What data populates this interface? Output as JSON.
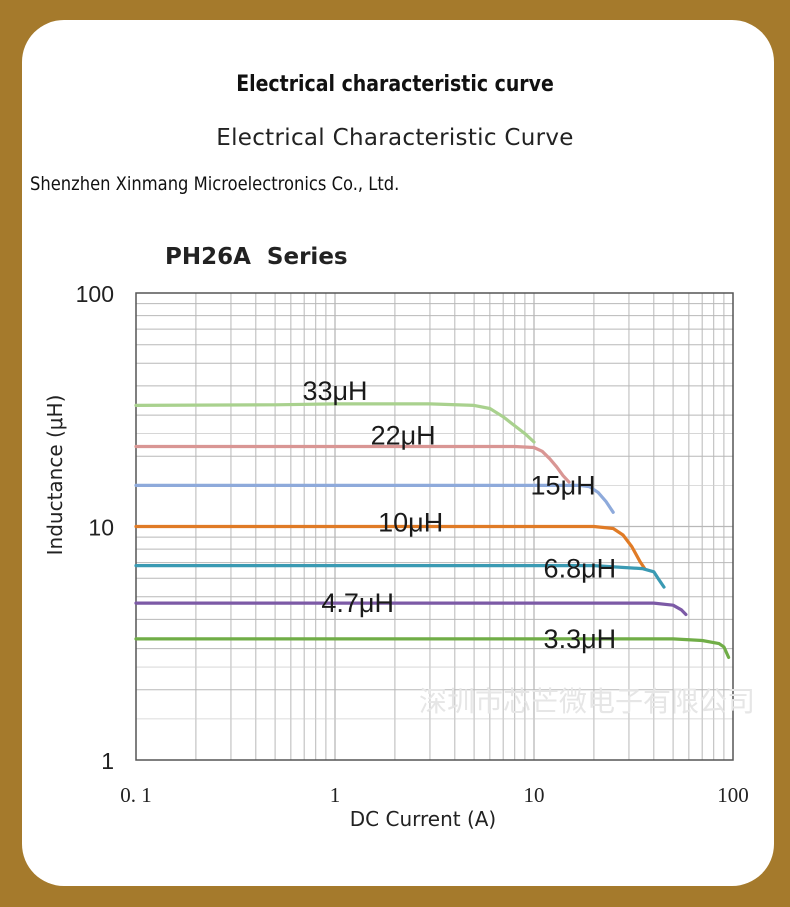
{
  "page": {
    "title_cn": "Electrical characteristic curve",
    "title_en": "Electrical Characteristic Curve",
    "company": "Shenzhen Xinmang Microelectronics Co., Ltd.",
    "watermark": "深圳市芯芒微电子有限公司"
  },
  "colors": {
    "background": "#a57a2c",
    "card": "#ffffff",
    "grid": "#b8b8b8",
    "axis": "#555555"
  },
  "chart_data": {
    "type": "line",
    "title": "PH26A  Series",
    "xlabel": "DC Current (A)",
    "ylabel": "Inductance (μH)",
    "xscale": "log",
    "yscale": "log",
    "xlim": [
      0.1,
      100
    ],
    "ylim": [
      1,
      100
    ],
    "xticks": [
      0.1,
      1,
      10,
      100
    ],
    "xtick_labels": [
      "0. 1",
      "1",
      "10",
      "100"
    ],
    "yticks": [
      1,
      10,
      100
    ],
    "ytick_labels": [
      "1",
      "10",
      "100"
    ],
    "grid": true,
    "series": [
      {
        "name": "33μH",
        "color": "#a9d18e",
        "label_at": [
          1.0,
          38
        ],
        "points": [
          [
            0.1,
            33
          ],
          [
            0.5,
            33.2
          ],
          [
            1,
            33.5
          ],
          [
            3,
            33.5
          ],
          [
            5,
            33
          ],
          [
            6,
            32
          ],
          [
            7,
            29.5
          ],
          [
            8,
            27
          ],
          [
            9,
            25
          ],
          [
            10,
            23
          ]
        ]
      },
      {
        "name": "22μH",
        "color": "#d99694",
        "label_at": [
          2.2,
          24.5
        ],
        "points": [
          [
            0.1,
            22
          ],
          [
            1,
            22
          ],
          [
            5,
            22
          ],
          [
            8,
            22
          ],
          [
            10,
            21.8
          ],
          [
            11,
            21
          ],
          [
            12,
            19.5
          ],
          [
            13,
            18
          ],
          [
            14,
            16.5
          ],
          [
            15,
            15.5
          ]
        ]
      },
      {
        "name": "15μH",
        "color": "#8eaadb",
        "label_at": [
          14,
          15
        ],
        "points": [
          [
            0.1,
            15
          ],
          [
            1,
            15
          ],
          [
            10,
            15
          ],
          [
            17,
            15
          ],
          [
            19,
            14.8
          ],
          [
            21,
            14
          ],
          [
            23,
            12.8
          ],
          [
            25,
            11.5
          ]
        ]
      },
      {
        "name": "10μH",
        "color": "#e07b26",
        "label_at": [
          2.4,
          10.4
        ],
        "points": [
          [
            0.1,
            10
          ],
          [
            1,
            10
          ],
          [
            10,
            10
          ],
          [
            20,
            10
          ],
          [
            25,
            9.8
          ],
          [
            28,
            9.2
          ],
          [
            31,
            8.2
          ],
          [
            34,
            7.1
          ],
          [
            36,
            6.6
          ]
        ]
      },
      {
        "name": "6.8μH",
        "color": "#3a9ab3",
        "label_at": [
          17,
          6.6
        ],
        "points": [
          [
            0.1,
            6.8
          ],
          [
            1,
            6.8
          ],
          [
            10,
            6.8
          ],
          [
            20,
            6.8
          ],
          [
            35,
            6.6
          ],
          [
            40,
            6.4
          ],
          [
            42,
            6.0
          ],
          [
            45,
            5.5
          ]
        ]
      },
      {
        "name": "4.7μH",
        "color": "#7c5aa6",
        "label_at": [
          1.3,
          4.7
        ],
        "points": [
          [
            0.1,
            4.7
          ],
          [
            1,
            4.7
          ],
          [
            10,
            4.7
          ],
          [
            30,
            4.7
          ],
          [
            40,
            4.7
          ],
          [
            50,
            4.6
          ],
          [
            55,
            4.4
          ],
          [
            58,
            4.2
          ]
        ]
      },
      {
        "name": "3.3μH",
        "color": "#70ad47",
        "label_at": [
          17,
          3.3
        ],
        "points": [
          [
            0.1,
            3.3
          ],
          [
            1,
            3.3
          ],
          [
            10,
            3.3
          ],
          [
            50,
            3.3
          ],
          [
            70,
            3.25
          ],
          [
            85,
            3.15
          ],
          [
            90,
            3.05
          ],
          [
            95,
            2.75
          ]
        ]
      }
    ]
  }
}
